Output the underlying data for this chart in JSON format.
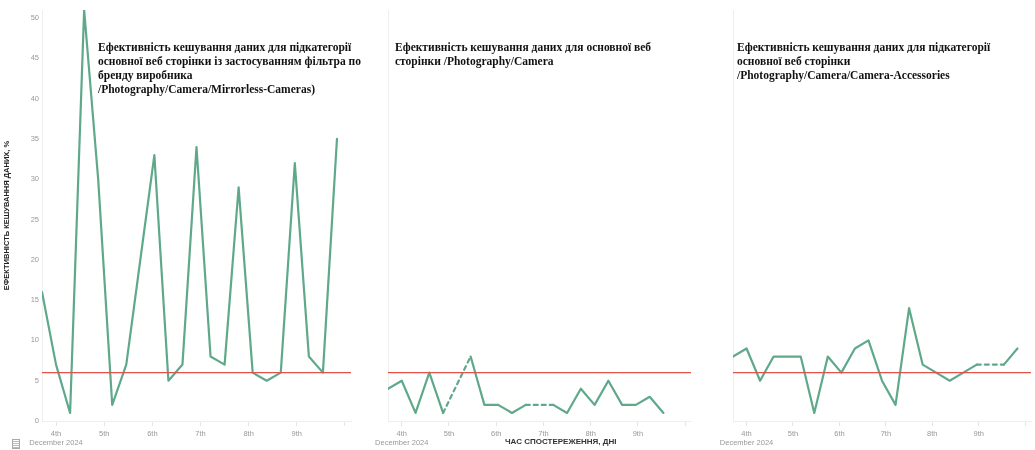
{
  "chart_data": [
    {
      "type": "line",
      "title": "Ефективність кешування даних для підкатегорії основної веб  сторінки із застосуванням фільтра по бренду виробника /Photography/Camera/Mirrorless-Cameras)",
      "ylabel": "ЕФЕКТИВНІСТЬ КЕШУВАННЯ ДАНИХ, %",
      "x": [
        "2024-12-03T17:00",
        "2024-12-04T00:00",
        "2024-12-04T07:00",
        "2024-12-04T14:00",
        "2024-12-04T21:00",
        "2024-12-05T04:00",
        "2024-12-05T11:00",
        "2024-12-06T01:00",
        "2024-12-06T08:00",
        "2024-12-06T15:00",
        "2024-12-06T22:00",
        "2024-12-07T05:00",
        "2024-12-07T12:00",
        "2024-12-07T19:00",
        "2024-12-08T02:00",
        "2024-12-08T09:00",
        "2024-12-08T16:00",
        "2024-12-08T23:00",
        "2024-12-09T06:00",
        "2024-12-09T13:00",
        "2024-12-09T20:00"
      ],
      "series": [
        {
          "color": "#5fa98a",
          "values": [
            16,
            7,
            1,
            51,
            30,
            2,
            7,
            33,
            5,
            7,
            34,
            8,
            7,
            29,
            6,
            5,
            6,
            32,
            8,
            6,
            35
          ]
        }
      ],
      "xlim": [
        "2024-12-03T17:00",
        "2024-12-10T03:00"
      ],
      "xticks": [
        {
          "value": "2024-12-04",
          "label": "4th\nDecember 2024"
        },
        {
          "value": "2024-12-05",
          "label": "5th"
        },
        {
          "value": "2024-12-06",
          "label": "6th"
        },
        {
          "value": "2024-12-07",
          "label": "7th"
        },
        {
          "value": "2024-12-08",
          "label": "8th"
        },
        {
          "value": "2024-12-09",
          "label": "9th"
        },
        {
          "value": "2024-12-10",
          "label": null
        }
      ],
      "ylim": [
        0,
        51
      ],
      "yticks": [
        0,
        5,
        10,
        15,
        20,
        25,
        30,
        35,
        40,
        45,
        50
      ],
      "ref_lines": [
        {
          "axis": "y",
          "value": 6,
          "color": "#e0524a"
        }
      ],
      "marker": "none",
      "line_style": "solid",
      "grid": false
    },
    {
      "type": "line",
      "title": "Ефективність кешування даних для основної веб  сторінки /Photography/Camera",
      "annotations": [
        "ЧАС СПОСТЕРЕЖЕННЯ, ДНІ"
      ],
      "x": [
        "2024-12-03T17:00",
        "2024-12-04T00:00",
        "2024-12-04T07:00",
        "2024-12-04T14:00",
        "2024-12-04T21:00",
        "2024-12-05T04:00",
        "2024-12-05T11:00",
        "2024-12-05T18:00",
        "2024-12-06T01:00",
        "2024-12-06T08:00",
        "2024-12-06T15:00",
        "2024-12-06T22:00",
        "2024-12-07T05:00",
        "2024-12-07T12:00",
        "2024-12-07T19:00",
        "2024-12-08T02:00",
        "2024-12-08T09:00",
        "2024-12-08T16:00",
        "2024-12-08T23:00",
        "2024-12-09T06:00",
        "2024-12-09T13:00"
      ],
      "series": [
        {
          "color": "#5fa98a",
          "values": [
            4,
            5,
            1,
            6,
            1,
            null,
            8,
            2,
            2,
            1,
            2,
            null,
            2,
            1,
            4,
            2,
            5,
            2,
            2,
            3,
            1
          ]
        }
      ],
      "xlim": [
        "2024-12-03T17:00",
        "2024-12-10T03:00"
      ],
      "xticks": [
        {
          "value": "2024-12-04",
          "label": "4th\nDecember 2024"
        },
        {
          "value": "2024-12-05",
          "label": "5th"
        },
        {
          "value": "2024-12-06",
          "label": "6th"
        },
        {
          "value": "2024-12-07",
          "label": "7th"
        },
        {
          "value": "2024-12-08",
          "label": "8th"
        },
        {
          "value": "2024-12-09",
          "label": "9th"
        },
        {
          "value": "2024-12-10",
          "label": null
        }
      ],
      "ylim": [
        0,
        51
      ],
      "yticks": [
        0,
        5,
        10,
        15,
        20,
        25,
        30,
        35,
        40,
        45,
        50
      ],
      "tick_labels": "x",
      "ref_lines": [
        {
          "axis": "y",
          "value": 6,
          "color": "#e0524a"
        }
      ],
      "marker": "none",
      "line_style": "solid",
      "grid": false
    },
    {
      "type": "line",
      "title": "Ефективність кешування даних для підкатегорії основної веб  сторінки /Photography/Camera/Camera-Accessories",
      "x": [
        "2024-12-03T17:00",
        "2024-12-04T00:00",
        "2024-12-04T07:00",
        "2024-12-04T14:00",
        "2024-12-04T21:00",
        "2024-12-05T04:00",
        "2024-12-05T11:00",
        "2024-12-05T18:00",
        "2024-12-06T01:00",
        "2024-12-06T08:00",
        "2024-12-06T15:00",
        "2024-12-06T22:00",
        "2024-12-07T05:00",
        "2024-12-07T12:00",
        "2024-12-07T19:00",
        "2024-12-08T02:00",
        "2024-12-08T09:00",
        "2024-12-08T16:00",
        "2024-12-08T23:00",
        "2024-12-09T06:00",
        "2024-12-09T13:00",
        "2024-12-09T20:00"
      ],
      "series": [
        {
          "color": "#5fa98a",
          "values": [
            8,
            9,
            5,
            8,
            8,
            8,
            1,
            8,
            6,
            9,
            10,
            5,
            2,
            14,
            7,
            6,
            5,
            6,
            7,
            null,
            7,
            9
          ]
        }
      ],
      "xlim": [
        "2024-12-03T17:00",
        "2024-12-10T03:00"
      ],
      "xticks": [
        {
          "value": "2024-12-04",
          "label": "4th\nDecember 2024"
        },
        {
          "value": "2024-12-05",
          "label": "5th"
        },
        {
          "value": "2024-12-06",
          "label": "6th"
        },
        {
          "value": "2024-12-07",
          "label": "7th"
        },
        {
          "value": "2024-12-08",
          "label": "8th"
        },
        {
          "value": "2024-12-09",
          "label": "9th"
        },
        {
          "value": "2024-12-10",
          "label": null
        }
      ],
      "ylim": [
        0,
        51
      ],
      "yticks": [
        0,
        5,
        10,
        15,
        20,
        25,
        30,
        35,
        40,
        45,
        50
      ],
      "tick_labels": "x",
      "ref_lines": [
        {
          "axis": "y",
          "value": 6,
          "color": "#e0524a"
        }
      ],
      "marker": "none",
      "line_style": "solid",
      "grid": false
    }
  ]
}
